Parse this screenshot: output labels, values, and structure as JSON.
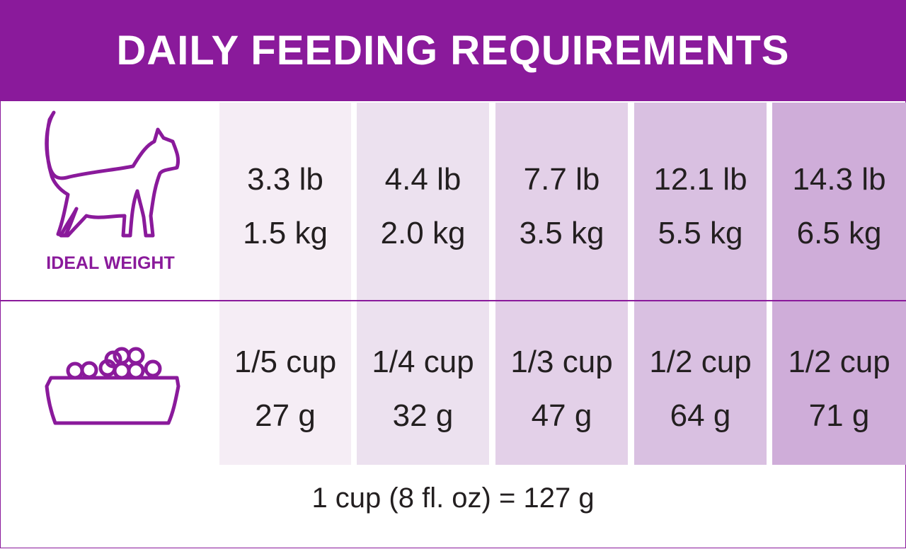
{
  "title": "DAILY FEEDING REQUIREMENTS",
  "row_labels": {
    "weight_label": "IDEAL WEIGHT",
    "weight_icon": "cat-icon",
    "food_icon": "food-bowl-icon"
  },
  "columns": [
    {
      "lb": "3.3 lb",
      "kg": "1.5 kg",
      "cup": "1/5 cup",
      "g": "27 g",
      "shade": "#f5edf5"
    },
    {
      "lb": "4.4 lb",
      "kg": "2.0 kg",
      "cup": "1/4 cup",
      "g": "32 g",
      "shade": "#ece1ef"
    },
    {
      "lb": "7.7 lb",
      "kg": "3.5 kg",
      "cup": "1/3 cup",
      "g": "47 g",
      "shade": "#e3d0e8"
    },
    {
      "lb": "12.1 lb",
      "kg": "5.5 kg",
      "cup": "1/2 cup",
      "g": "64 g",
      "shade": "#d9c0e1"
    },
    {
      "lb": "14.3 lb",
      "kg": "6.5 kg",
      "cup": "1/2 cup",
      "g": "71 g",
      "shade": "#cfadd9"
    }
  ],
  "footnote": "1 cup (8 fl. oz) = 127 g",
  "colors": {
    "brand": "#8a1a9b",
    "text": "#231f20"
  }
}
